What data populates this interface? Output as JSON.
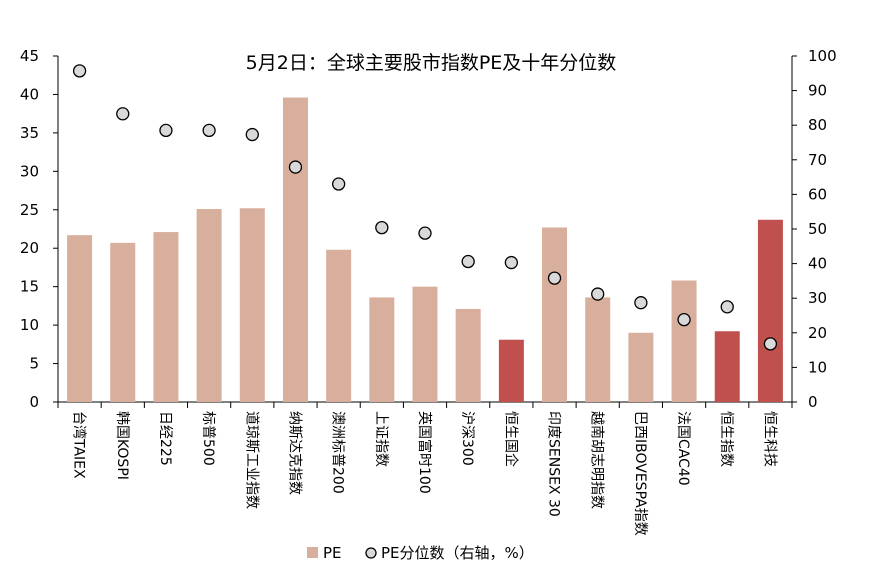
{
  "chart_data": {
    "type": "bar",
    "title": "5月2日：全球主要股市指数PE及十年分位数",
    "categories": [
      "台湾TAIEX",
      "韩国KOSPI",
      "日经225",
      "标普500",
      "道琼斯工业指数",
      "纳斯达克指数",
      "澳洲标普200",
      "上证指数",
      "英国富时100",
      "沪深300",
      "恒生国企",
      "印度SENSEX 30",
      "越南胡志明指数",
      "巴西IBOVESPA指数",
      "法国CAC40",
      "恒生指数",
      "恒生科技"
    ],
    "series": [
      {
        "name": "PE",
        "type": "bar",
        "axis": "left",
        "values": [
          21.7,
          20.7,
          22.1,
          25.1,
          25.2,
          39.6,
          19.8,
          13.6,
          15.0,
          12.1,
          8.1,
          22.7,
          13.6,
          9.0,
          15.8,
          9.2,
          23.7
        ],
        "highlight": [
          false,
          false,
          false,
          false,
          false,
          false,
          false,
          false,
          false,
          false,
          true,
          false,
          false,
          false,
          false,
          true,
          true
        ]
      },
      {
        "name": "PE分位数（右轴，%）",
        "type": "scatter",
        "axis": "right",
        "values": [
          95.7,
          83.3,
          78.5,
          78.5,
          77.3,
          67.9,
          63.0,
          50.4,
          48.8,
          40.6,
          40.3,
          35.8,
          31.2,
          28.7,
          23.8,
          27.5,
          16.8
        ]
      }
    ],
    "y_left": {
      "min": 0,
      "max": 45,
      "ticks": [
        "0",
        "5",
        "10",
        "15",
        "20",
        "25",
        "30",
        "35",
        "40",
        "45"
      ]
    },
    "y_right": {
      "min": 0,
      "max": 100,
      "ticks": [
        "0",
        "10",
        "20",
        "30",
        "40",
        "50",
        "60",
        "70",
        "80",
        "90",
        "100"
      ]
    },
    "legend": {
      "placement": "bottom"
    },
    "grid": false,
    "colors": {
      "bar": "#D8AF9C",
      "bar_highlight": "#C0504D",
      "marker_fill": "#D9D9D9",
      "marker_stroke": "#000000"
    }
  }
}
